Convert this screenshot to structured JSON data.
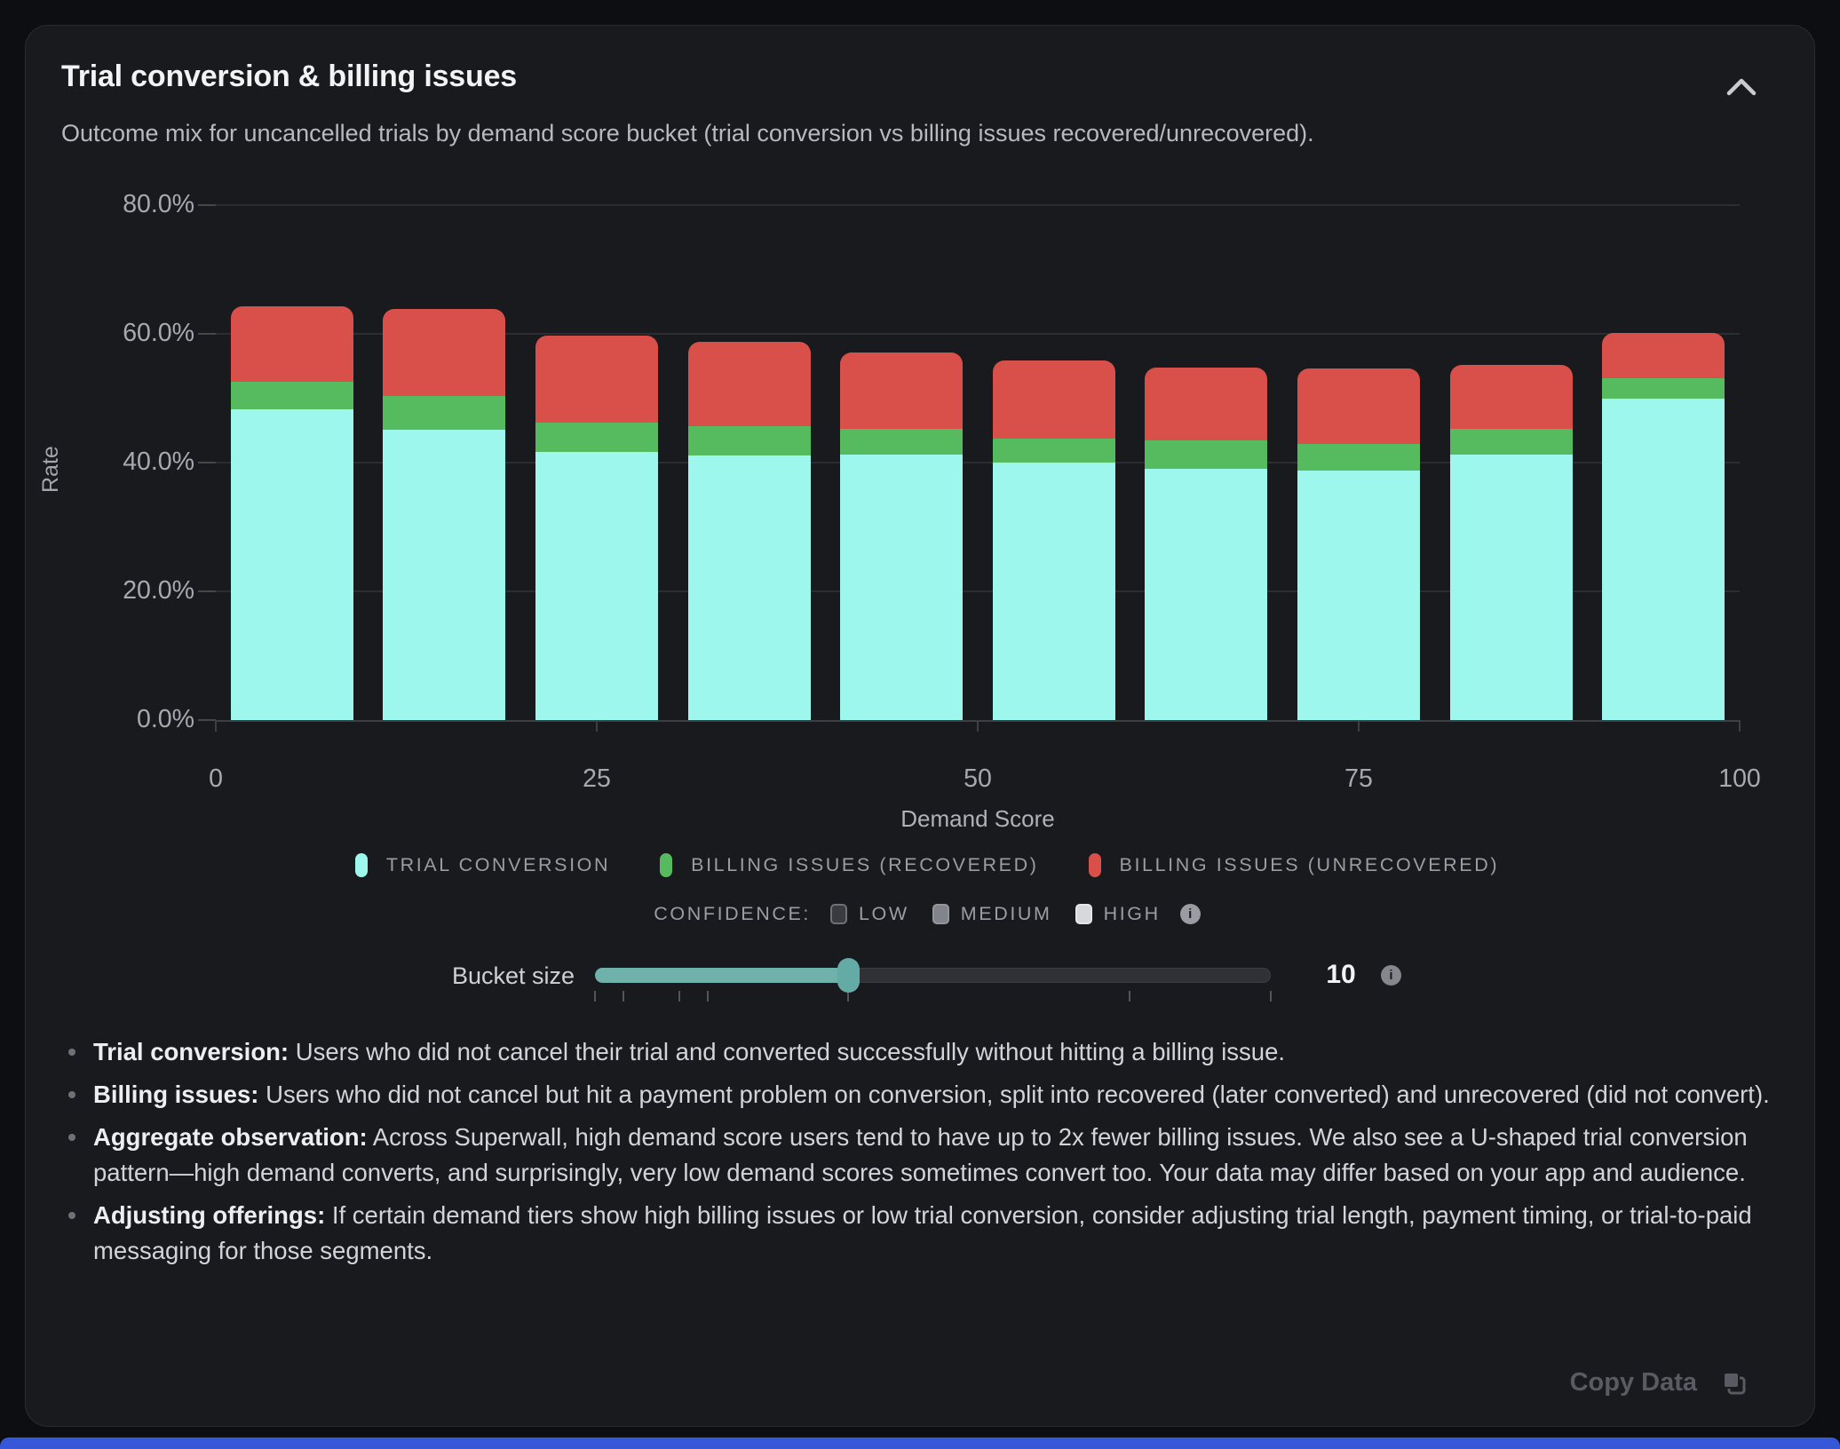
{
  "card": {
    "title": "Trial conversion & billing issues",
    "subtitle": "Outcome mix for uncancelled trials by demand score bucket (trial conversion vs billing issues recovered/unrecovered)."
  },
  "chart_data": {
    "type": "bar",
    "stacked": true,
    "xlabel": "Demand Score",
    "ylabel": "Rate",
    "ylim": [
      0,
      80
    ],
    "ytick_labels": [
      "80.0%",
      "60.0%",
      "40.0%",
      "20.0%",
      "0.0%"
    ],
    "ytick_values": [
      80,
      60,
      40,
      20,
      0
    ],
    "xtick_values": [
      0,
      25,
      50,
      75,
      100
    ],
    "grid": true,
    "legend_position": "bottom",
    "bucket_size": 10,
    "categories": [
      "0-10",
      "10-20",
      "20-30",
      "30-40",
      "40-50",
      "50-60",
      "60-70",
      "70-80",
      "80-90",
      "90-100"
    ],
    "series": [
      {
        "name": "Trial conversion",
        "color": "#9ef7ec",
        "values": [
          48.3,
          45.1,
          41.7,
          41.1,
          41.3,
          40.0,
          39.1,
          38.8,
          41.3,
          49.9
        ]
      },
      {
        "name": "Billing issues (recovered)",
        "color": "#56bb5f",
        "values": [
          4.2,
          5.3,
          4.5,
          4.6,
          3.9,
          3.7,
          4.4,
          4.1,
          4.0,
          3.2
        ]
      },
      {
        "name": "Billing issues (unrecovered)",
        "color": "#d94f49",
        "values": [
          11.8,
          13.5,
          13.5,
          13.0,
          11.9,
          12.2,
          11.3,
          11.7,
          9.9,
          7.1
        ]
      }
    ],
    "stack_totals": [
      64.3,
      63.9,
      59.7,
      58.7,
      57.1,
      55.9,
      54.8,
      54.6,
      55.2,
      60.2
    ]
  },
  "legend": [
    {
      "label": "TRIAL CONVERSION",
      "color": "#9ef7ec"
    },
    {
      "label": "BILLING ISSUES (RECOVERED)",
      "color": "#56bb5f"
    },
    {
      "label": "BILLING ISSUES (UNRECOVERED)",
      "color": "#d94f49"
    }
  ],
  "confidence": {
    "label": "CONFIDENCE:",
    "options": [
      {
        "label": "LOW",
        "fill": "#3a3b40",
        "border": "#6f7177"
      },
      {
        "label": "MEDIUM",
        "fill": "#82848b",
        "border": "#94969c"
      },
      {
        "label": "HIGH",
        "fill": "#d7d8dc",
        "border": "#e4e5e9"
      }
    ],
    "info": "i"
  },
  "slider": {
    "label": "Bucket size",
    "value": 10,
    "value_display": "10",
    "min": 1,
    "max": 25,
    "tick_values": [
      1,
      2,
      4,
      5,
      10,
      20,
      25
    ],
    "info": "i"
  },
  "notes": [
    {
      "lead": "Trial conversion:",
      "text": " Users who did not cancel their trial and converted successfully without hitting a billing issue."
    },
    {
      "lead": "Billing issues:",
      "text": " Users who did not cancel but hit a payment problem on conversion, split into recovered (later converted) and unrecovered (did not convert)."
    },
    {
      "lead": "Aggregate observation:",
      "text": " Across Superwall, high demand score users tend to have up to 2x fewer billing issues. We also see a U-shaped trial conversion pattern—high demand converts, and surprisingly, very low demand scores sometimes convert too. Your data may differ based on your app and audience."
    },
    {
      "lead": "Adjusting offerings:",
      "text": " If certain demand tiers show high billing issues or low trial conversion, consider adjusting trial length, payment timing, or trial-to-paid messaging for those segments."
    }
  ],
  "footer": {
    "copy_label": "Copy Data"
  },
  "colors": {
    "card_bg": "#191a1d",
    "page_bg": "#0d0e11",
    "accent_teal": "#6fb2ab",
    "bottom_strip_blue": "#3657d8",
    "gridline": "#2c2d31"
  }
}
